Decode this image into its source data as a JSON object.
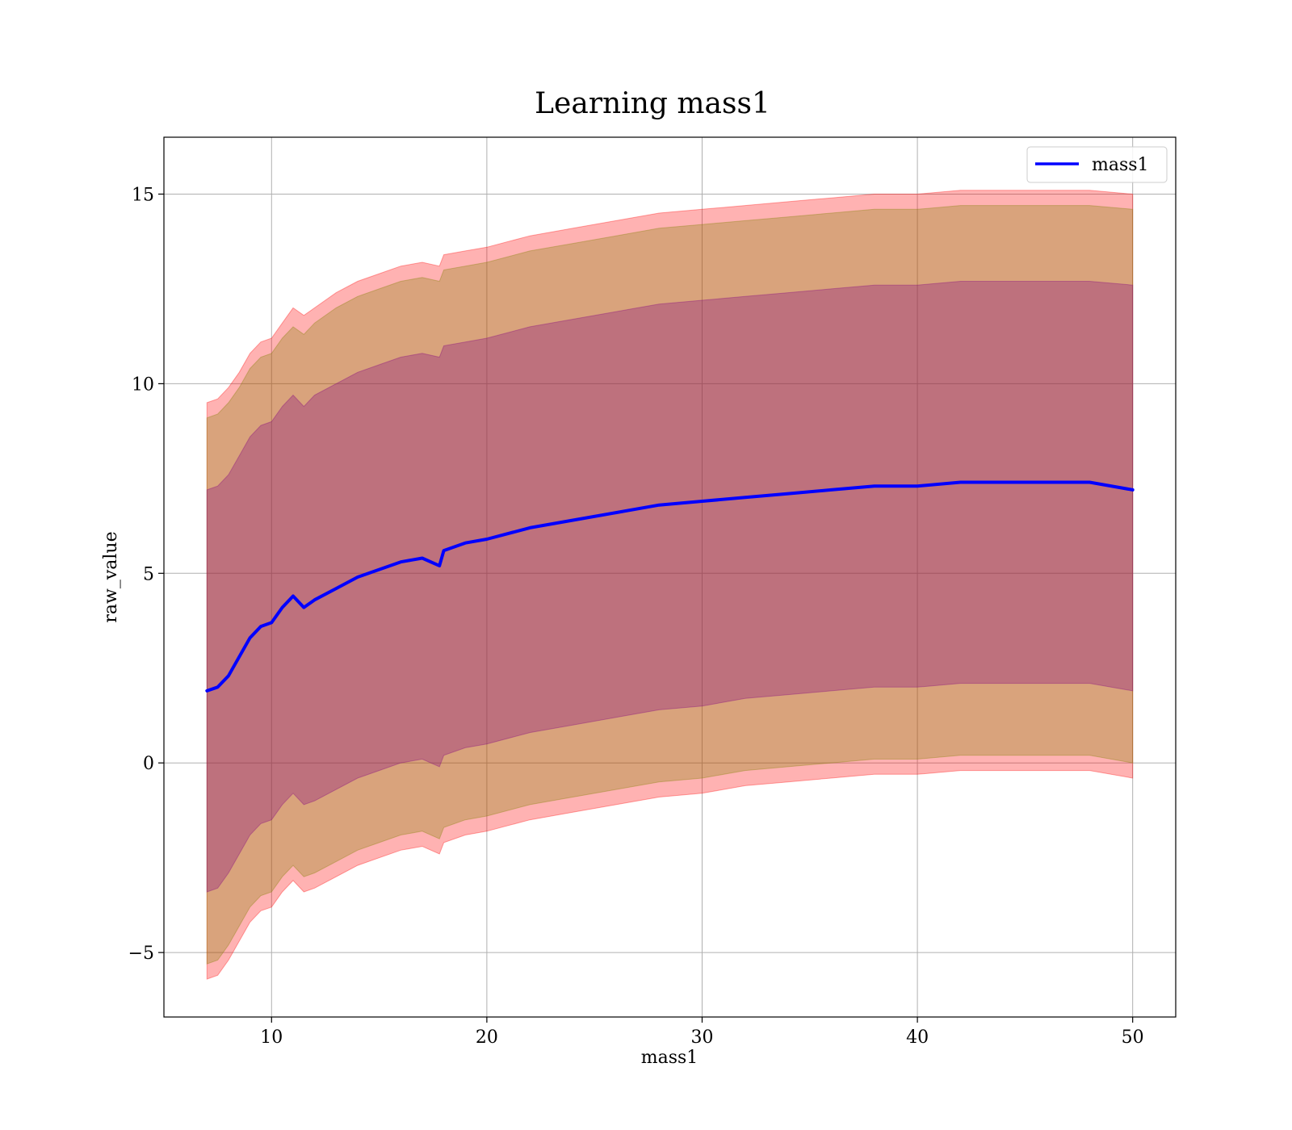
{
  "chart_data": {
    "type": "line",
    "title": "Learning mass1",
    "xlabel": "mass1",
    "ylabel": "raw_value",
    "xlim": [
      5,
      52
    ],
    "ylim": [
      -6.7,
      16.5
    ],
    "xticks": [
      10,
      20,
      30,
      40,
      50
    ],
    "yticks": [
      -5,
      0,
      5,
      10,
      15
    ],
    "ytick_labels": [
      "−5",
      "0",
      "5",
      "10",
      "15"
    ],
    "grid": true,
    "legend": {
      "position": "top-right",
      "entries": [
        "mass1"
      ]
    },
    "colors": {
      "line": "#0000ff",
      "outer_band": "#ff0000",
      "middle_band": "#808000",
      "inner_band": "#800080",
      "grid": "#b0b0b0"
    },
    "x": [
      7,
      7.5,
      8,
      8.5,
      9,
      9.5,
      10,
      10.5,
      11,
      11.5,
      12,
      13,
      14,
      15,
      16,
      17,
      17.8,
      18,
      19,
      20,
      22,
      24,
      26,
      28,
      30,
      32,
      34,
      36,
      38,
      40,
      42,
      44,
      46,
      48,
      50
    ],
    "series": [
      {
        "name": "mass1",
        "values": [
          1.9,
          2.0,
          2.3,
          2.8,
          3.3,
          3.6,
          3.7,
          4.1,
          4.4,
          4.1,
          4.3,
          4.6,
          4.9,
          5.1,
          5.3,
          5.4,
          5.2,
          5.6,
          5.8,
          5.9,
          6.2,
          6.4,
          6.6,
          6.8,
          6.9,
          7.0,
          7.1,
          7.2,
          7.3,
          7.3,
          7.4,
          7.4,
          7.4,
          7.4,
          7.2
        ]
      }
    ],
    "bands": [
      {
        "level": "outer",
        "upper": [
          9.5,
          9.6,
          9.9,
          10.3,
          10.8,
          11.1,
          11.2,
          11.6,
          12.0,
          11.8,
          12.0,
          12.4,
          12.7,
          12.9,
          13.1,
          13.2,
          13.1,
          13.4,
          13.5,
          13.6,
          13.9,
          14.1,
          14.3,
          14.5,
          14.6,
          14.7,
          14.8,
          14.9,
          15.0,
          15.0,
          15.1,
          15.1,
          15.1,
          15.1,
          15.0
        ],
        "lower": [
          -5.7,
          -5.6,
          -5.2,
          -4.7,
          -4.2,
          -3.9,
          -3.8,
          -3.4,
          -3.1,
          -3.4,
          -3.3,
          -3.0,
          -2.7,
          -2.5,
          -2.3,
          -2.2,
          -2.4,
          -2.1,
          -1.9,
          -1.8,
          -1.5,
          -1.3,
          -1.1,
          -0.9,
          -0.8,
          -0.6,
          -0.5,
          -0.4,
          -0.3,
          -0.3,
          -0.2,
          -0.2,
          -0.2,
          -0.2,
          -0.4
        ]
      },
      {
        "level": "middle",
        "upper": [
          9.1,
          9.2,
          9.5,
          9.9,
          10.4,
          10.7,
          10.8,
          11.2,
          11.5,
          11.3,
          11.6,
          12.0,
          12.3,
          12.5,
          12.7,
          12.8,
          12.7,
          13.0,
          13.1,
          13.2,
          13.5,
          13.7,
          13.9,
          14.1,
          14.2,
          14.3,
          14.4,
          14.5,
          14.6,
          14.6,
          14.7,
          14.7,
          14.7,
          14.7,
          14.6
        ],
        "lower": [
          -5.3,
          -5.2,
          -4.8,
          -4.3,
          -3.8,
          -3.5,
          -3.4,
          -3.0,
          -2.7,
          -3.0,
          -2.9,
          -2.6,
          -2.3,
          -2.1,
          -1.9,
          -1.8,
          -2.0,
          -1.7,
          -1.5,
          -1.4,
          -1.1,
          -0.9,
          -0.7,
          -0.5,
          -0.4,
          -0.2,
          -0.1,
          0.0,
          0.1,
          0.1,
          0.2,
          0.2,
          0.2,
          0.2,
          0.0
        ]
      },
      {
        "level": "inner",
        "upper": [
          7.2,
          7.3,
          7.6,
          8.1,
          8.6,
          8.9,
          9.0,
          9.4,
          9.7,
          9.4,
          9.7,
          10.0,
          10.3,
          10.5,
          10.7,
          10.8,
          10.7,
          11.0,
          11.1,
          11.2,
          11.5,
          11.7,
          11.9,
          12.1,
          12.2,
          12.3,
          12.4,
          12.5,
          12.6,
          12.6,
          12.7,
          12.7,
          12.7,
          12.7,
          12.6
        ],
        "lower": [
          -3.4,
          -3.3,
          -2.9,
          -2.4,
          -1.9,
          -1.6,
          -1.5,
          -1.1,
          -0.8,
          -1.1,
          -1.0,
          -0.7,
          -0.4,
          -0.2,
          0.0,
          0.1,
          -0.1,
          0.2,
          0.4,
          0.5,
          0.8,
          1.0,
          1.2,
          1.4,
          1.5,
          1.7,
          1.8,
          1.9,
          2.0,
          2.0,
          2.1,
          2.1,
          2.1,
          2.1,
          1.9
        ]
      }
    ]
  }
}
